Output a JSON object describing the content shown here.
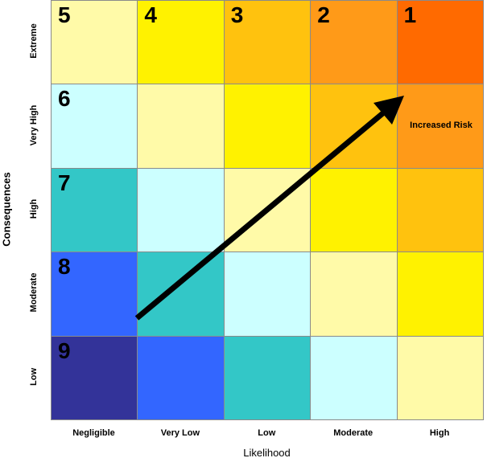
{
  "rows": [
    {
      "label": "Extreme",
      "cells": [
        "5",
        "4",
        "3",
        "2",
        "1"
      ]
    },
    {
      "label": "Very High",
      "cells": [
        "6",
        null,
        null,
        null,
        null
      ]
    },
    {
      "label": "High",
      "cells": [
        "7",
        null,
        null,
        null,
        null
      ]
    },
    {
      "label": "Moderate",
      "cells": [
        "8",
        null,
        null,
        null,
        null
      ]
    },
    {
      "label": "Low",
      "cells": [
        "9",
        null,
        null,
        null,
        null
      ]
    }
  ],
  "columns": [
    "Negligible",
    "Very Low",
    "Low",
    "Moderate",
    "High"
  ],
  "x_title": "Likelihood",
  "y_title": "Consequences",
  "annotation": "Increased Risk"
}
